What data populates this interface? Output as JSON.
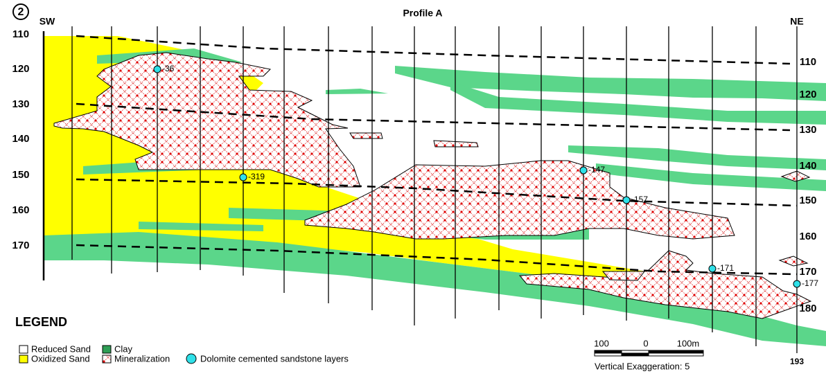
{
  "header": {
    "badge": "2",
    "title": "Profile A",
    "left_direction": "SW",
    "right_direction": "NE"
  },
  "left_depths": [
    "110",
    "120",
    "130",
    "140",
    "150",
    "160",
    "170"
  ],
  "right_depths": [
    "110",
    "120",
    "130",
    "140",
    "150",
    "160",
    "170",
    "180"
  ],
  "dolomite_labels": [
    "-36",
    "-319",
    "-147",
    "-157",
    "-171",
    "-177"
  ],
  "legend": {
    "title": "LEGEND",
    "items": [
      "Reduced Sand",
      "Clay",
      "Oxidized Sand",
      "Mineralization",
      "Dolomite cemented sandstone layers"
    ]
  },
  "scale": {
    "labels": [
      "100",
      "0",
      "100m"
    ],
    "note": "Vertical Exaggeration: 5"
  },
  "well_label": "193"
}
